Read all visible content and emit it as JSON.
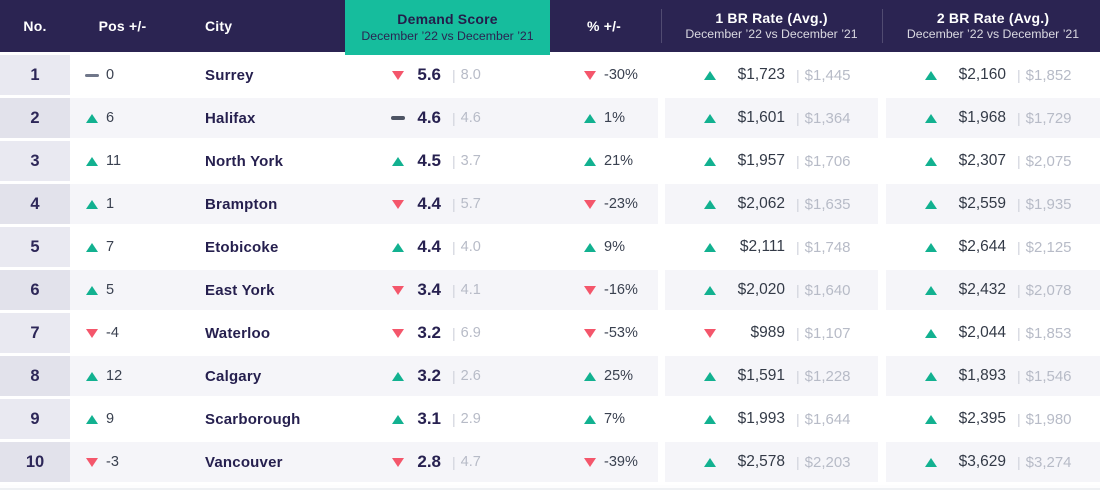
{
  "chart_data": {
    "type": "table",
    "divider": "|",
    "header": {
      "no": "No.",
      "pos": "Pos +/-",
      "city": "City",
      "demand_title": "Demand Score",
      "demand_subtitle": "December ’22 vs December ’21",
      "pct": "% +/-",
      "br1_title": "1 BR Rate (Avg.)",
      "br1_subtitle": "December ’22 vs December ’21",
      "br2_title": "2 BR Rate (Avg.)",
      "br2_subtitle": "December ’22 vs December ’21"
    },
    "rows": [
      {
        "no": "1",
        "pos": {
          "dir": "same",
          "value": "0"
        },
        "city": "Surrey",
        "demand": {
          "dir": "down",
          "value": "5.6",
          "prev": "8.0"
        },
        "pct": {
          "dir": "down",
          "value": "-30%"
        },
        "br1": {
          "dir": "up",
          "value": "$1,723",
          "prev": "$1,445"
        },
        "br2": {
          "dir": "up",
          "value": "$2,160",
          "prev": "$1,852"
        }
      },
      {
        "no": "2",
        "pos": {
          "dir": "up",
          "value": "6"
        },
        "city": "Halifax",
        "demand": {
          "dir": "same",
          "value": "4.6",
          "prev": "4.6"
        },
        "pct": {
          "dir": "up",
          "value": "1%"
        },
        "br1": {
          "dir": "up",
          "value": "$1,601",
          "prev": "$1,364"
        },
        "br2": {
          "dir": "up",
          "value": "$1,968",
          "prev": "$1,729"
        }
      },
      {
        "no": "3",
        "pos": {
          "dir": "up",
          "value": "11"
        },
        "city": "North York",
        "demand": {
          "dir": "up",
          "value": "4.5",
          "prev": "3.7"
        },
        "pct": {
          "dir": "up",
          "value": "21%"
        },
        "br1": {
          "dir": "up",
          "value": "$1,957",
          "prev": "$1,706"
        },
        "br2": {
          "dir": "up",
          "value": "$2,307",
          "prev": "$2,075"
        }
      },
      {
        "no": "4",
        "pos": {
          "dir": "up",
          "value": "1"
        },
        "city": "Brampton",
        "demand": {
          "dir": "down",
          "value": "4.4",
          "prev": "5.7"
        },
        "pct": {
          "dir": "down",
          "value": "-23%"
        },
        "br1": {
          "dir": "up",
          "value": "$2,062",
          "prev": "$1,635"
        },
        "br2": {
          "dir": "up",
          "value": "$2,559",
          "prev": "$1,935"
        }
      },
      {
        "no": "5",
        "pos": {
          "dir": "up",
          "value": "7"
        },
        "city": "Etobicoke",
        "demand": {
          "dir": "up",
          "value": "4.4",
          "prev": "4.0"
        },
        "pct": {
          "dir": "up",
          "value": "9%"
        },
        "br1": {
          "dir": "up",
          "value": "$2,111",
          "prev": "$1,748"
        },
        "br2": {
          "dir": "up",
          "value": "$2,644",
          "prev": "$2,125"
        }
      },
      {
        "no": "6",
        "pos": {
          "dir": "up",
          "value": "5"
        },
        "city": "East York",
        "demand": {
          "dir": "down",
          "value": "3.4",
          "prev": "4.1"
        },
        "pct": {
          "dir": "down",
          "value": "-16%"
        },
        "br1": {
          "dir": "up",
          "value": "$2,020",
          "prev": "$1,640"
        },
        "br2": {
          "dir": "up",
          "value": "$2,432",
          "prev": "$2,078"
        }
      },
      {
        "no": "7",
        "pos": {
          "dir": "down",
          "value": "-4"
        },
        "city": "Waterloo",
        "demand": {
          "dir": "down",
          "value": "3.2",
          "prev": "6.9"
        },
        "pct": {
          "dir": "down",
          "value": "-53%"
        },
        "br1": {
          "dir": "down",
          "value": "$989",
          "prev": "$1,107"
        },
        "br2": {
          "dir": "up",
          "value": "$2,044",
          "prev": "$1,853"
        }
      },
      {
        "no": "8",
        "pos": {
          "dir": "up",
          "value": "12"
        },
        "city": "Calgary",
        "demand": {
          "dir": "up",
          "value": "3.2",
          "prev": "2.6"
        },
        "pct": {
          "dir": "up",
          "value": "25%"
        },
        "br1": {
          "dir": "up",
          "value": "$1,591",
          "prev": "$1,228"
        },
        "br2": {
          "dir": "up",
          "value": "$1,893",
          "prev": "$1,546"
        }
      },
      {
        "no": "9",
        "pos": {
          "dir": "up",
          "value": "9"
        },
        "city": "Scarborough",
        "demand": {
          "dir": "up",
          "value": "3.1",
          "prev": "2.9"
        },
        "pct": {
          "dir": "up",
          "value": "7%"
        },
        "br1": {
          "dir": "up",
          "value": "$1,993",
          "prev": "$1,644"
        },
        "br2": {
          "dir": "up",
          "value": "$2,395",
          "prev": "$1,980"
        }
      },
      {
        "no": "10",
        "pos": {
          "dir": "down",
          "value": "-3"
        },
        "city": "Vancouver",
        "demand": {
          "dir": "down",
          "value": "2.8",
          "prev": "4.7"
        },
        "pct": {
          "dir": "down",
          "value": "-39%"
        },
        "br1": {
          "dir": "up",
          "value": "$2,578",
          "prev": "$2,203"
        },
        "br2": {
          "dir": "up",
          "value": "$3,629",
          "prev": "$3,274"
        }
      }
    ],
    "colors": {
      "header_navy": "#2b2452",
      "accent_teal": "#16bd9d",
      "up_green": "#12b190",
      "down_red": "#f4566b",
      "navy_text": "#2b2452",
      "value_dark": "#333a47",
      "prev_gray": "#b7bbc7",
      "row_alt_bg": "#f5f5f9",
      "no_col_bg": "#e9e9f1",
      "no_col_alt_bg": "#e2e2eb"
    }
  }
}
